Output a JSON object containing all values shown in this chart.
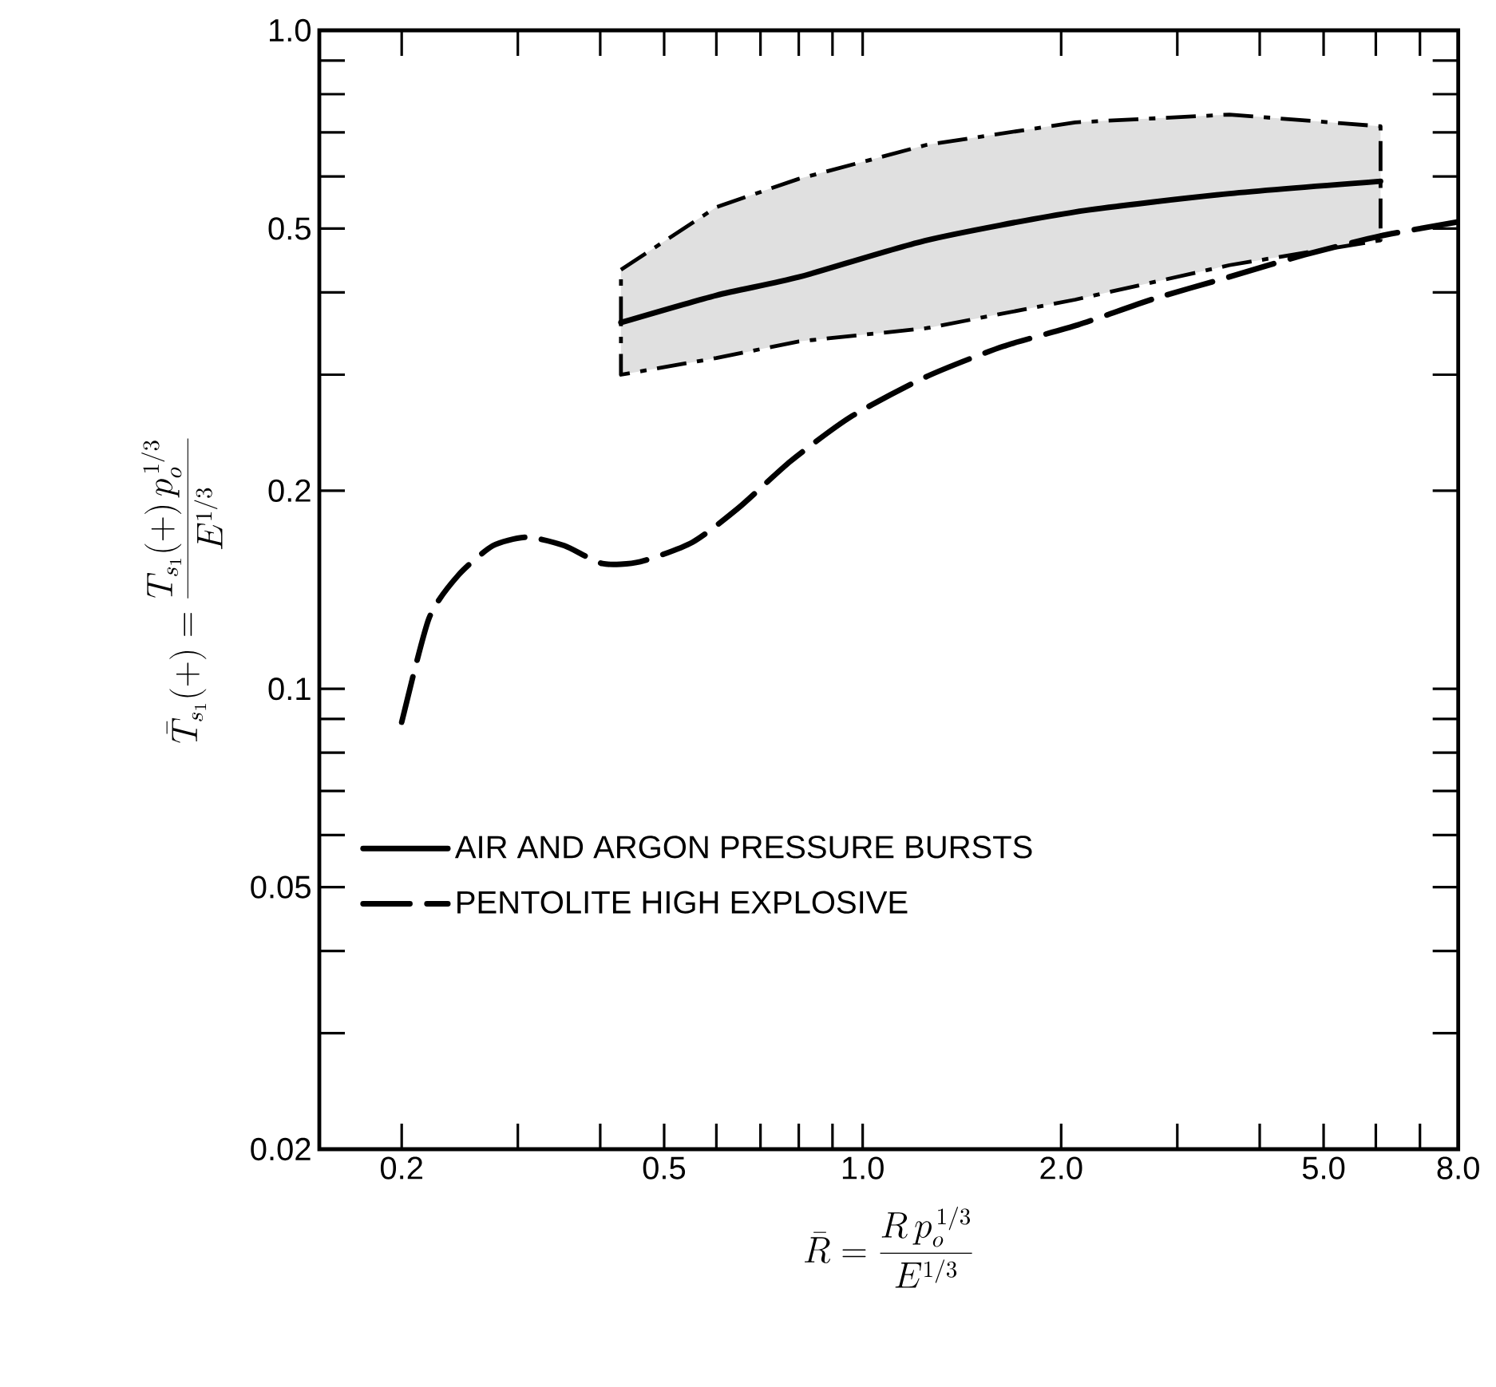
{
  "chart_data": {
    "type": "line",
    "xlabel": "\\bar{R} = \\frac{R\\,p_o^{\\,1/3}}{E^{1/3}}",
    "ylabel": "\\bar{T}_{s_1}(+) = \\frac{T_{s_1}(+)\\,p_o^{\\,1/3}}{E^{1/3}}",
    "log": "xy",
    "xlim": [
      0.15,
      8
    ],
    "ylim": [
      0.02,
      1
    ],
    "xticks": [
      0.2,
      {
        "value": 0.3,
        "label": null
      },
      {
        "value": 0.4,
        "label": null
      },
      0.5,
      {
        "value": 0.6,
        "label": null
      },
      {
        "value": 0.7,
        "label": null
      },
      {
        "value": 0.8,
        "label": null
      },
      {
        "value": 0.9,
        "label": null
      },
      {
        "value": 1,
        "label": "1.0"
      },
      {
        "value": 2,
        "label": "2.0"
      },
      {
        "value": 3,
        "label": null
      },
      {
        "value": 4,
        "label": null
      },
      {
        "value": 5,
        "label": "5.0"
      },
      {
        "value": 6,
        "label": null
      },
      {
        "value": 7,
        "label": null
      },
      {
        "value": 8,
        "label": "8.0"
      }
    ],
    "yticks": [
      0.02,
      {
        "value": 0.03,
        "label": null
      },
      {
        "value": 0.04,
        "label": null
      },
      0.05,
      {
        "value": 0.06,
        "label": null
      },
      {
        "value": 0.07,
        "label": null
      },
      {
        "value": 0.08,
        "label": null
      },
      {
        "value": 0.09,
        "label": null
      },
      0.1,
      0.2,
      {
        "value": 0.3,
        "label": null
      },
      {
        "value": 0.4,
        "label": null
      },
      0.5,
      {
        "value": 0.6,
        "label": null
      },
      {
        "value": 0.7,
        "label": null
      },
      {
        "value": 0.8,
        "label": null
      },
      {
        "value": 0.9,
        "label": null
      },
      {
        "value": 1,
        "label": "1.0"
      }
    ],
    "legend": "bottom left",
    "series": [
      {
        "name": "AIR AND ARGON PRESSURE BURSTS",
        "color": "#000000",
        "line_style": "solid",
        "x": [
          0.43,
          0.6,
          0.8,
          1.25,
          2.1,
          3.6,
          6.1
        ],
        "values": [
          0.36,
          0.396,
          0.422,
          0.48,
          0.53,
          0.565,
          0.59
        ],
        "lower": [
          0.3,
          0.318,
          0.337,
          0.353,
          0.39,
          0.44,
          0.48
        ],
        "upper": [
          0.433,
          0.539,
          0.595,
          0.67,
          0.725,
          0.745,
          0.715
        ]
      },
      {
        "name": "PENTOLITE HIGH EXPLOSIVE",
        "color": "#000000",
        "line_style": "dashed",
        "x": [
          0.2,
          0.22,
          0.244,
          0.275,
          0.31,
          0.353,
          0.403,
          0.46,
          0.552,
          0.647,
          0.779,
          0.96,
          1.25,
          1.63,
          2.12,
          2.76,
          3.59,
          4.67,
          6.08,
          8
        ],
        "values": [
          0.089,
          0.128,
          0.149,
          0.165,
          0.17,
          0.165,
          0.155,
          0.156,
          0.167,
          0.188,
          0.222,
          0.259,
          0.298,
          0.331,
          0.357,
          0.391,
          0.422,
          0.456,
          0.487,
          0.512
        ]
      }
    ]
  }
}
